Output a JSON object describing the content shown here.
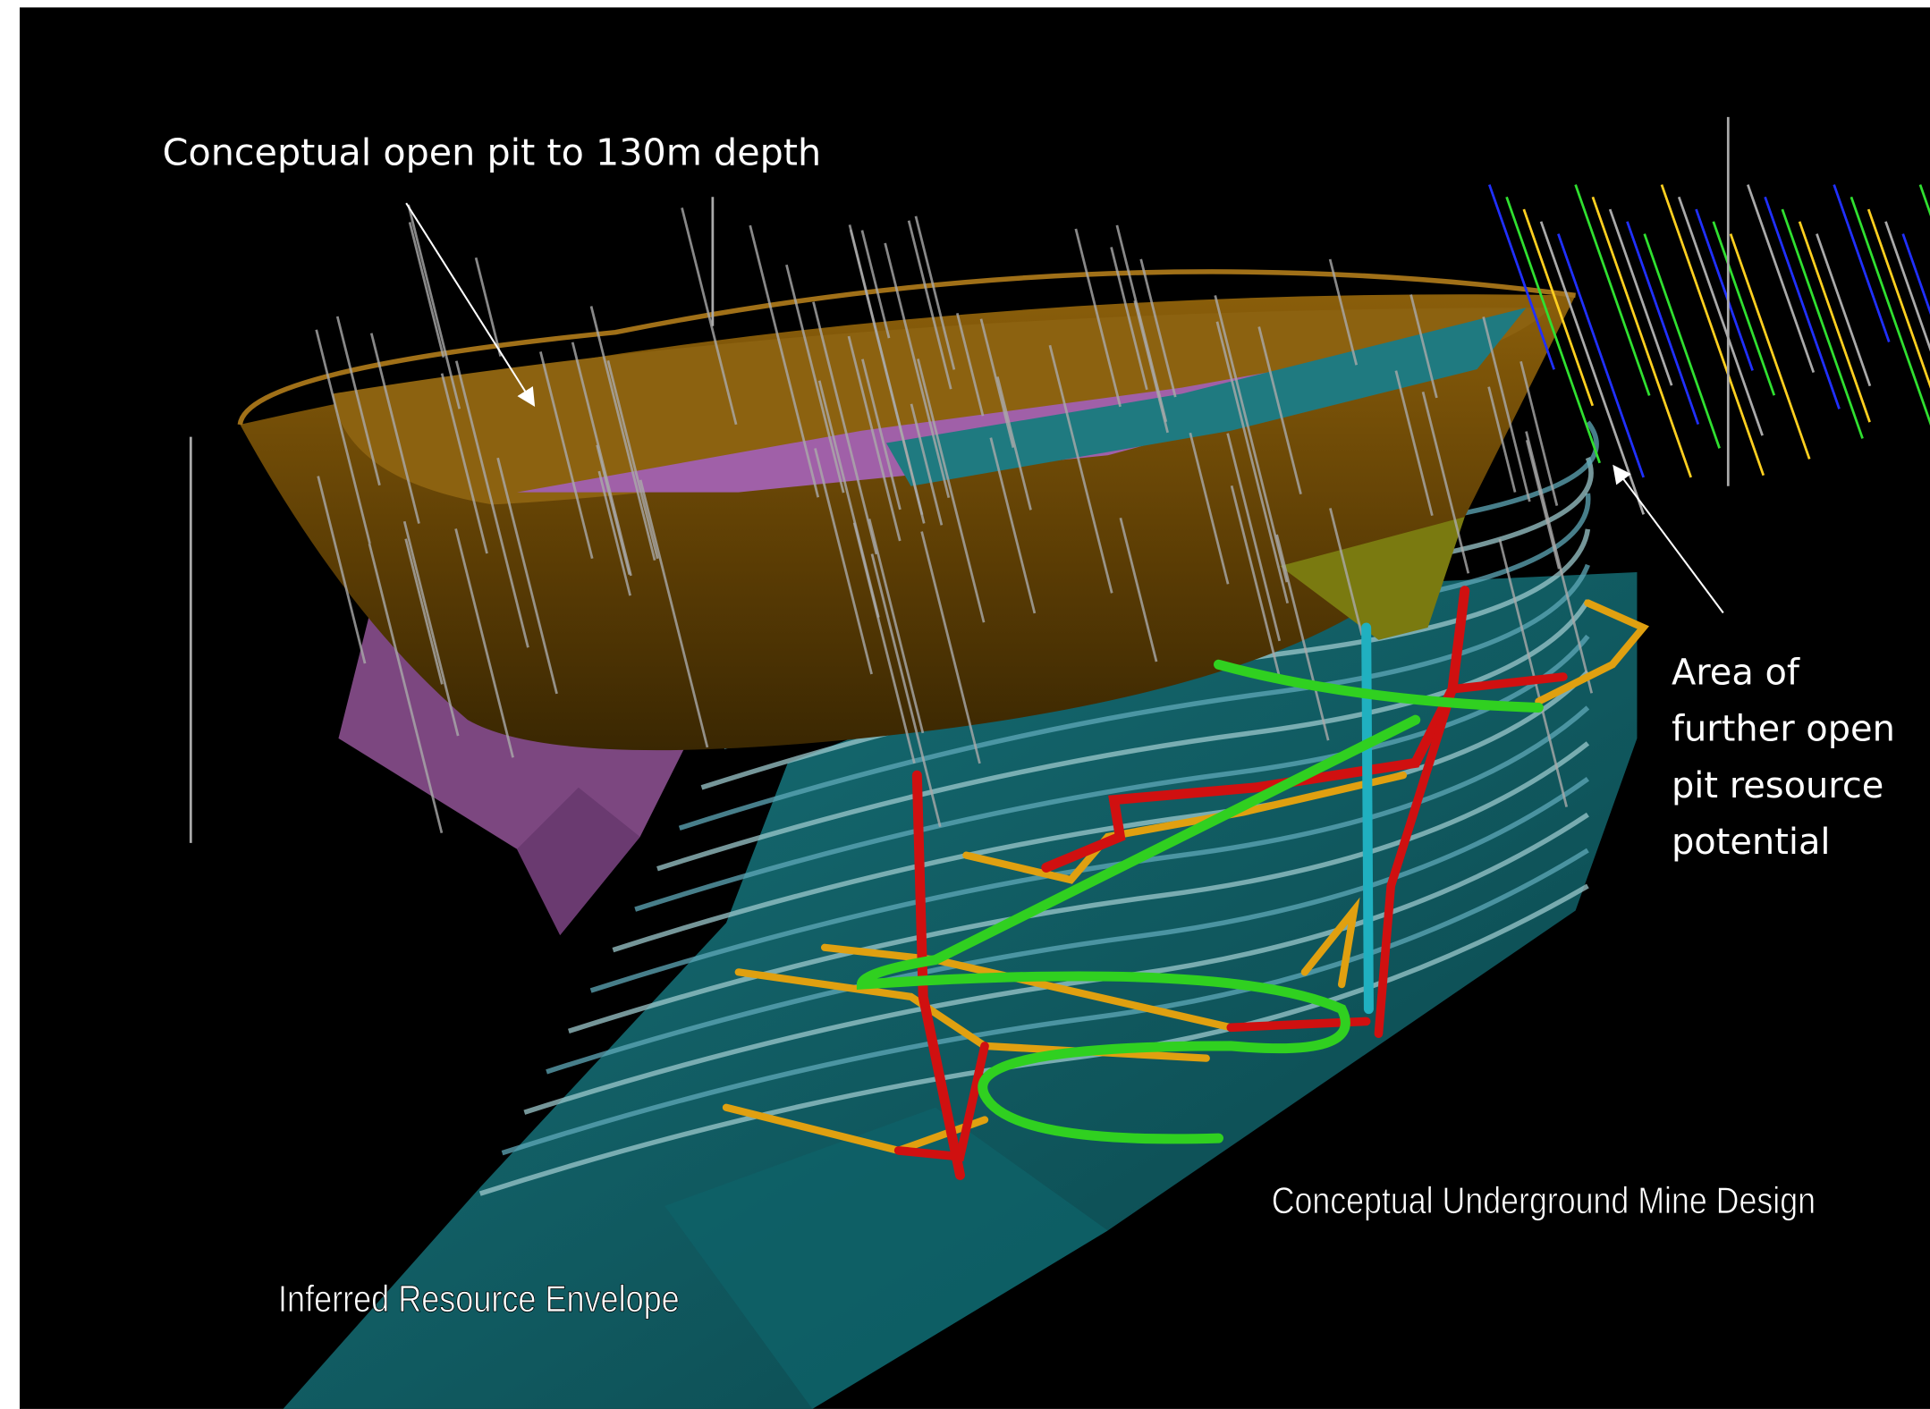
{
  "annotations": {
    "open_pit": "Conceptual open pit to 130m depth",
    "further_potential": [
      "Area of",
      "further open",
      "pit resource",
      "potential"
    ],
    "underground": "Conceptual Underground Mine Design",
    "inferred": "Inferred Resource Envelope"
  }
}
